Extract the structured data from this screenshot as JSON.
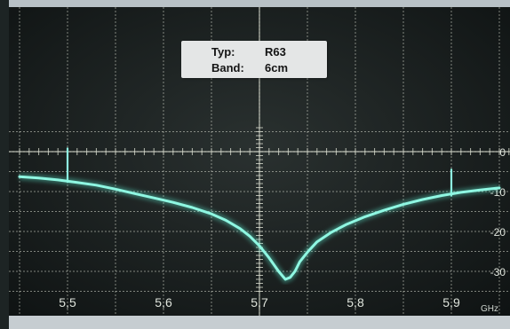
{
  "info_card": {
    "type_key": "Typ:",
    "type_value": "R63",
    "band_key": "Band:",
    "band_value": "6cm"
  },
  "chart_data": {
    "type": "line",
    "title": "",
    "xlabel": "GHz",
    "ylabel": "",
    "x_ticks": [
      5.5,
      5.6,
      5.7,
      5.8,
      5.9
    ],
    "x_tick_labels": [
      "5,5",
      "5,6",
      "5,7",
      "5,8",
      "5,9"
    ],
    "y_ticks": [
      0,
      -10,
      -20,
      -30
    ],
    "y_tick_labels": [
      "0",
      "-10",
      "-20",
      "-30"
    ],
    "xlim": [
      5.45,
      5.96
    ],
    "ylim": [
      -33,
      6
    ],
    "grid": true,
    "colors": {
      "trace": "#5ff0d4",
      "screen": "#161c1c",
      "grid": "#d9ddcf",
      "labels": "#dfe4dc"
    },
    "series": [
      {
        "x": [
          5.45,
          5.47,
          5.49,
          5.51,
          5.53,
          5.55,
          5.57,
          5.59,
          5.61,
          5.63,
          5.65,
          5.665,
          5.68,
          5.69,
          5.7,
          5.71,
          5.72,
          5.727,
          5.732,
          5.737,
          5.742,
          5.75,
          5.76,
          5.775,
          5.79,
          5.81,
          5.83,
          5.85,
          5.87,
          5.89,
          5.91,
          5.93,
          5.95
        ],
        "y": [
          -6.3,
          -6.6,
          -7.1,
          -7.7,
          -8.4,
          -9.4,
          -10.5,
          -11.6,
          -12.7,
          -14.0,
          -15.6,
          -17.2,
          -19.3,
          -21.2,
          -23.6,
          -26.6,
          -30.0,
          -32.0,
          -31.5,
          -30.0,
          -27.6,
          -25.2,
          -22.6,
          -20.2,
          -18.3,
          -16.3,
          -14.7,
          -13.2,
          -12.0,
          -11.0,
          -10.2,
          -9.6,
          -9.1
        ]
      }
    ],
    "markers": [
      {
        "x": 5.5,
        "y_top": 0.8,
        "y_bottom": -7.6
      },
      {
        "x": 5.9,
        "y_top": -4.5,
        "y_bottom": -11.0
      }
    ]
  }
}
